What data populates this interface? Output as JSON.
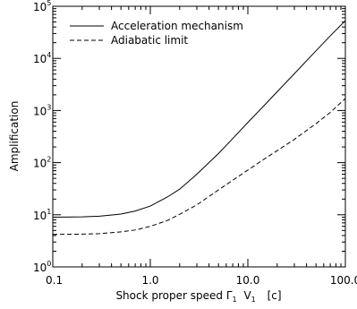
{
  "chart_data": {
    "type": "line",
    "title": "",
    "xlabel": "Shock proper speed",
    "xlabel_symbol": "Γ",
    "xlabel_sub1": "1",
    "xlabel_symbol2": "V",
    "xlabel_sub2": "1",
    "xlabel_unit": "[c]",
    "ylabel": "Amplification",
    "xscale": "log",
    "yscale": "log",
    "xlim": [
      0.1,
      100
    ],
    "ylim": [
      1,
      100000
    ],
    "x_ticks": [
      {
        "value": 0.1,
        "label": "0.1"
      },
      {
        "value": 1,
        "label": "1.0"
      },
      {
        "value": 10,
        "label": "10.0"
      },
      {
        "value": 100,
        "label": "100.0"
      }
    ],
    "y_ticks": [
      {
        "value": 1,
        "base": "10",
        "exp": "0"
      },
      {
        "value": 10,
        "base": "10",
        "exp": "1"
      },
      {
        "value": 100,
        "base": "10",
        "exp": "2"
      },
      {
        "value": 1000,
        "base": "10",
        "exp": "3"
      },
      {
        "value": 10000,
        "base": "10",
        "exp": "4"
      },
      {
        "value": 100000,
        "base": "10",
        "exp": "5"
      }
    ],
    "grid": false,
    "legend_position": "top-left",
    "series": [
      {
        "name": "Acceleration mechanism",
        "style": "solid",
        "color": "#000000",
        "x": [
          0.1,
          0.2,
          0.3,
          0.5,
          0.7,
          1.0,
          1.5,
          2.0,
          3.0,
          5.0,
          7.0,
          10.0,
          15.0,
          20.0,
          30.0,
          50.0,
          70.0,
          100.0
        ],
        "y": [
          9.0,
          9.1,
          9.4,
          10.3,
          11.8,
          14.7,
          22,
          31,
          60,
          150,
          290,
          590,
          1300,
          2300,
          5100,
          14000,
          27000,
          53000
        ]
      },
      {
        "name": "Adiabatic limit",
        "style": "dashed",
        "color": "#000000",
        "x": [
          0.1,
          0.2,
          0.3,
          0.5,
          0.7,
          1.0,
          1.5,
          2.0,
          3.0,
          5.0,
          7.0,
          10.0,
          15.0,
          20.0,
          30.0,
          50.0,
          70.0,
          100.0
        ],
        "y": [
          4.2,
          4.25,
          4.35,
          4.7,
          5.1,
          6.0,
          7.8,
          10.2,
          15.5,
          30,
          46,
          72,
          120,
          170,
          280,
          560,
          920,
          1700
        ]
      }
    ]
  }
}
